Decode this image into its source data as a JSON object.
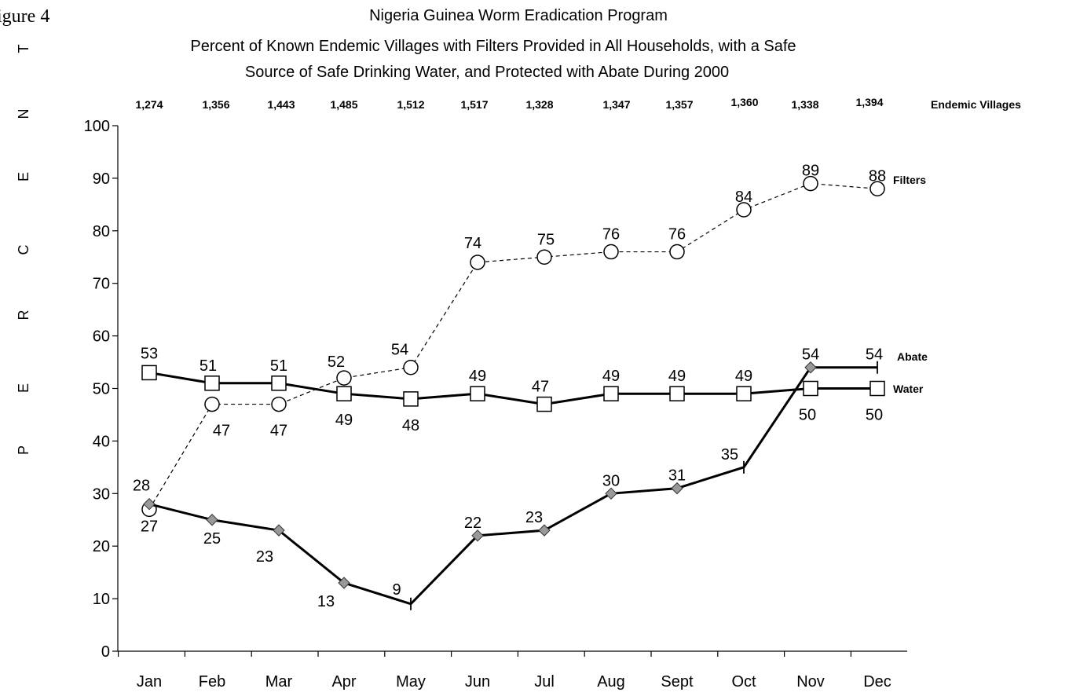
{
  "figure_label": "igure 4",
  "chart_data": {
    "type": "line",
    "title": "Nigeria  Guinea Worm Eradication Program",
    "subtitle_lines": [
      "Percent of Known Endemic Villages with Filters Provided in All  Households,  with a Safe",
      "Source of Safe Drinking Water, and Protected with  Abate During 2000"
    ],
    "ylabel_letters": [
      "P",
      "E",
      "R",
      "C",
      "E",
      "N",
      "T"
    ],
    "ylim": [
      0,
      100
    ],
    "yticks": [
      "0",
      "10",
      "20",
      "30",
      "40",
      "50",
      "60",
      "70",
      "80",
      "90",
      "100"
    ],
    "categories": [
      "Jan",
      "Feb",
      "Mar",
      "Apr",
      "May",
      "Jun",
      "Jul",
      "Aug",
      "Sept",
      "Oct",
      "Nov",
      "Dec"
    ],
    "endemic_villages": {
      "label": "Endemic Villages",
      "values": [
        "1,274",
        "1,356",
        "1,443",
        "1,485",
        "1,512",
        "1,517",
        "1,328",
        "1,347",
        "1,357",
        "1,360",
        "1,338",
        "1,394"
      ]
    },
    "series": [
      {
        "name": "Filters",
        "style": "dashed",
        "marker": "circle",
        "values": [
          27,
          47,
          47,
          52,
          54,
          74,
          75,
          76,
          76,
          84,
          89,
          88
        ],
        "labels": [
          "27",
          "47",
          "47",
          "52",
          "54",
          "74",
          "75",
          "76",
          "76",
          "84",
          "89",
          "88"
        ],
        "color": "#000000"
      },
      {
        "name": "Water",
        "style": "solid",
        "marker": "square",
        "values": [
          53,
          51,
          51,
          49,
          48,
          49,
          47,
          49,
          49,
          49,
          50,
          50
        ],
        "labels": [
          "53",
          "51",
          "51",
          "49",
          "48",
          "49",
          "47",
          "49",
          "49",
          "49",
          "50",
          "50"
        ],
        "color": "#000000"
      },
      {
        "name": "Abate",
        "style": "solid",
        "marker": "diamond",
        "values": [
          28,
          25,
          23,
          13,
          9,
          22,
          23,
          30,
          31,
          35,
          54,
          54
        ],
        "labels": [
          "28",
          "25",
          "23",
          "13",
          "9",
          "22",
          "23",
          "30",
          "31",
          "35",
          "54",
          "54"
        ],
        "marker_color": "#999999",
        "color": "#000000"
      }
    ],
    "grid": false,
    "legend": "inline-right"
  }
}
